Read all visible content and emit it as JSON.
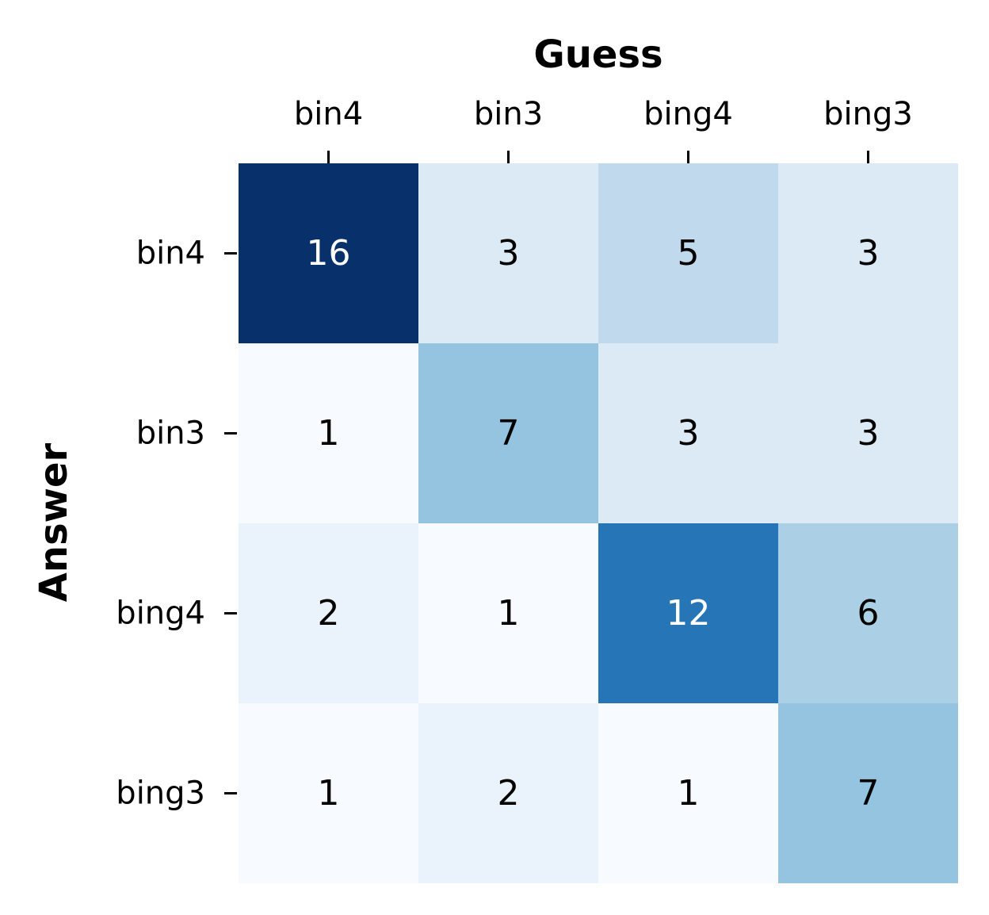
{
  "chart_data": {
    "type": "heatmap",
    "title": "",
    "xlabel": "Guess",
    "ylabel": "Answer",
    "x_categories": [
      "bin4",
      "bin3",
      "bing4",
      "bing3"
    ],
    "y_categories": [
      "bin4",
      "bin3",
      "bing4",
      "bing3"
    ],
    "values": [
      [
        16,
        3,
        5,
        3
      ],
      [
        1,
        7,
        3,
        3
      ],
      [
        2,
        1,
        12,
        6
      ],
      [
        1,
        2,
        1,
        7
      ]
    ],
    "colormap": "Blues",
    "color_range": [
      1,
      16
    ],
    "colors": {
      "scale": [
        "#f7fbff",
        "#deebf7",
        "#c6dbef",
        "#9ecae1",
        "#6baed6",
        "#4292c6",
        "#2171b5",
        "#08519c",
        "#08306b"
      ],
      "text_dark": "#000000",
      "text_light": "#ffffff"
    },
    "x_axis_position": "top",
    "colorbar": false,
    "grid": false
  }
}
